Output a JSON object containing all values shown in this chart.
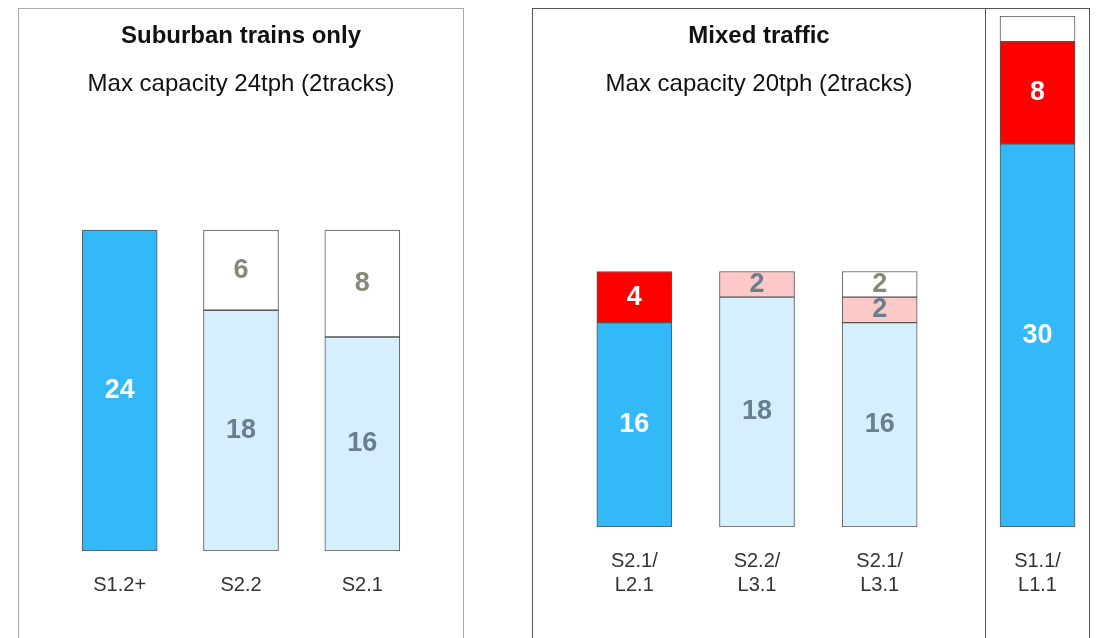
{
  "chart_data": [
    {
      "type": "bar",
      "title": "Suburban trains only",
      "subtitle": "Max capacity 24tph (2tracks)",
      "categories": [
        "S1.2+",
        "S2.2",
        "S2.1"
      ],
      "stacked": true,
      "tick_labels": "x",
      "grid": false,
      "legend": false,
      "series": [
        {
          "colors": [
            "#33b8f8",
            "#d6effc",
            "#d6effc"
          ],
          "values": [
            24,
            18,
            16
          ],
          "value_labels": [
            "24",
            "18",
            "16"
          ]
        },
        {
          "colors": [
            "#ffffff",
            "#ffffff",
            "#ffffff"
          ],
          "values": [
            null,
            6,
            8
          ],
          "value_labels": [
            null,
            "6",
            "8"
          ]
        }
      ]
    },
    {
      "type": "bar",
      "title": "Mixed traffic",
      "subtitle": "Max capacity 20tph (2tracks)",
      "categories": [
        "S2.1/L2.1",
        "S2.2/L3.1",
        "S2.1/L3.1"
      ],
      "stacked": true,
      "tick_labels": "x",
      "grid": false,
      "legend": false,
      "series": [
        {
          "colors": [
            "#33b8f8",
            "#d6effc",
            "#d6effc"
          ],
          "values": [
            16,
            18,
            16
          ],
          "value_labels": [
            "16",
            "18",
            "16"
          ]
        },
        {
          "colors": [
            "#ff0000",
            "#fcc8c8",
            "#fcc8c8"
          ],
          "values": [
            4,
            2,
            2
          ],
          "value_labels": [
            "4",
            "2",
            "2"
          ]
        },
        {
          "colors": [
            "#ffffff",
            "#ffffff",
            "#ffffff"
          ],
          "values": [
            null,
            null,
            2
          ],
          "value_labels": [
            null,
            null,
            "2"
          ]
        }
      ]
    },
    {
      "type": "bar",
      "categories": [
        "S1.1/L1.1"
      ],
      "stacked": true,
      "tick_labels": "x",
      "grid": false,
      "legend": false,
      "series": [
        {
          "colors": [
            "#33b8f8"
          ],
          "values": [
            30
          ],
          "value_labels": [
            "30"
          ]
        },
        {
          "colors": [
            "#ff0000"
          ],
          "values": [
            8
          ],
          "value_labels": [
            "8"
          ]
        },
        {
          "colors": [
            "#ffffff"
          ],
          "values": [
            2
          ],
          "value_labels": [
            null
          ]
        }
      ]
    }
  ]
}
